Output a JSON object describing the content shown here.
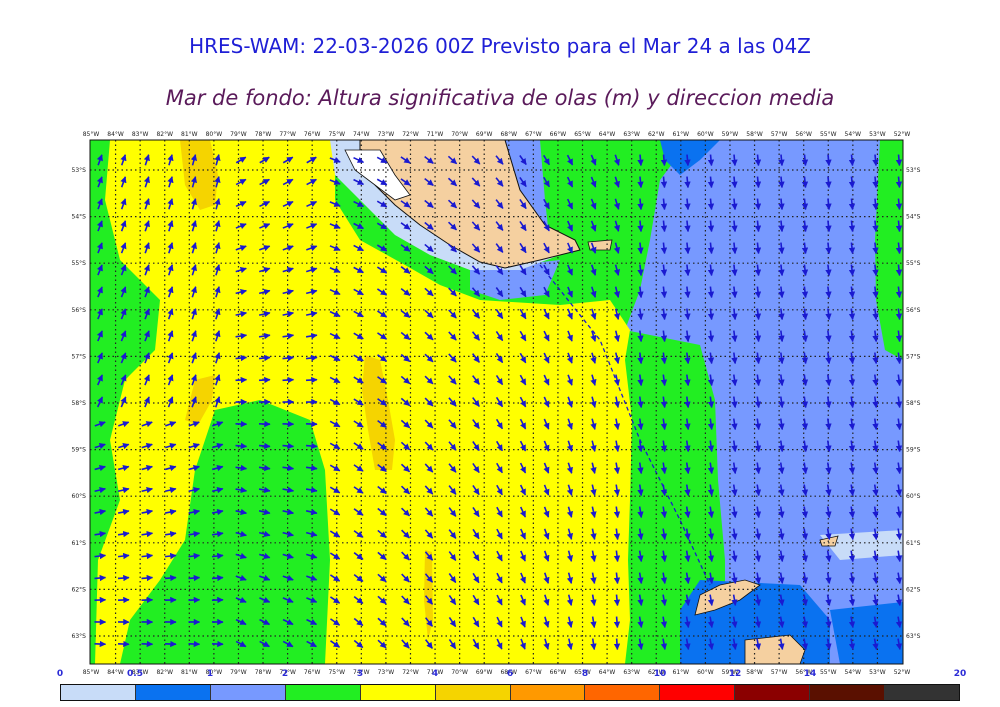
{
  "header": {
    "title": "HRES-WAM: 22-03-2026 00Z Previsto para el Mar 24 a las 04Z",
    "subtitle": "Mar de fondo: Altura significativa de olas (m) y direccion media"
  },
  "map": {
    "lon_labels": [
      "85°W",
      "84°W",
      "83°W",
      "82°W",
      "81°W",
      "80°W",
      "79°W",
      "78°W",
      "77°W",
      "76°W",
      "75°W",
      "74°W",
      "73°W",
      "72°W",
      "71°W",
      "70°W",
      "69°W",
      "68°W",
      "67°W",
      "66°W",
      "65°W",
      "64°W",
      "63°W",
      "62°W",
      "61°W",
      "60°W",
      "59°W",
      "58°W",
      "57°W",
      "56°W",
      "55°W",
      "54°W",
      "53°W",
      "52°W"
    ],
    "lat_labels": [
      "53°S",
      "54°S",
      "55°S",
      "56°S",
      "57°S",
      "58°S",
      "59°S",
      "60°S",
      "61°S",
      "62°S",
      "63°S"
    ],
    "colors": {
      "green": "#22ee22",
      "yellow": "#ffff00",
      "gold": "#f5d400",
      "blue_light": "#7799ff",
      "blue_mid": "#0a72f0",
      "pale_blue": "#c8dcf8",
      "land": "#f5d0a0",
      "arrow": "#1a1ad0"
    }
  },
  "legend": {
    "ticks": [
      "0",
      "0.5",
      "1",
      "2",
      "3",
      "4",
      "6",
      "8",
      "10",
      "12",
      "14",
      "20"
    ],
    "colors": [
      "#c8dcf8",
      "#0a72f0",
      "#7799ff",
      "#22ee22",
      "#ffff00",
      "#f5d400",
      "#ff9900",
      "#ff6600",
      "#ff0000",
      "#8b0000",
      "#5a1000",
      "#333333"
    ]
  }
}
